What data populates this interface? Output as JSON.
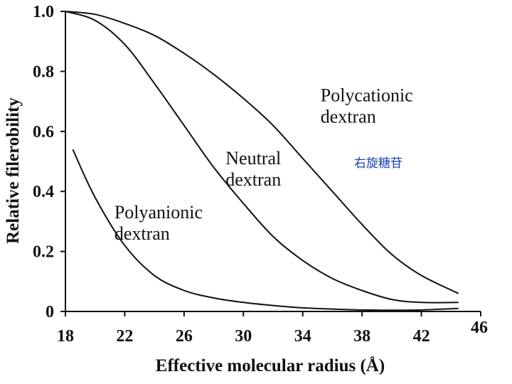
{
  "chart_data": {
    "type": "line",
    "xlabel": "Effective molecular radius (Å)",
    "ylabel": "Relative filerobility",
    "xlim": [
      18,
      46
    ],
    "ylim": [
      0,
      1.0
    ],
    "x_ticks": [
      "18",
      "22",
      "26",
      "30",
      "34",
      "38",
      "42",
      "46"
    ],
    "y_ticks": [
      "0",
      "0.2",
      "0.4",
      "0.6",
      "0.8",
      "1.0"
    ],
    "series": [
      {
        "name": "Polycationic dextran",
        "label_lines": [
          "Polycationic",
          "dextran"
        ],
        "x": [
          18,
          20,
          22,
          24,
          26,
          28,
          30,
          32,
          34,
          36,
          38,
          40,
          42,
          44.5
        ],
        "y": [
          1.0,
          0.99,
          0.96,
          0.92,
          0.86,
          0.79,
          0.71,
          0.62,
          0.51,
          0.4,
          0.29,
          0.19,
          0.12,
          0.06
        ]
      },
      {
        "name": "Neutral dextran",
        "label_lines": [
          "Neutral",
          "dextran"
        ],
        "x": [
          18,
          20,
          22,
          24,
          26,
          28,
          30,
          32,
          34,
          36,
          38,
          40,
          42,
          44.5
        ],
        "y": [
          1.0,
          0.97,
          0.89,
          0.76,
          0.62,
          0.48,
          0.36,
          0.25,
          0.17,
          0.11,
          0.07,
          0.04,
          0.03,
          0.03
        ]
      },
      {
        "name": "Polyanionic dextran",
        "label_lines": [
          "Polyanionic",
          "dextran"
        ],
        "x": [
          18.5,
          20,
          22,
          24,
          26,
          28,
          30,
          32,
          34,
          36,
          38,
          40,
          42,
          44.5
        ],
        "y": [
          0.54,
          0.38,
          0.22,
          0.12,
          0.07,
          0.045,
          0.03,
          0.02,
          0.012,
          0.008,
          0.005,
          0.004,
          0.005,
          0.01
        ]
      }
    ],
    "annotation": "右旋糖苷",
    "grid": false
  }
}
